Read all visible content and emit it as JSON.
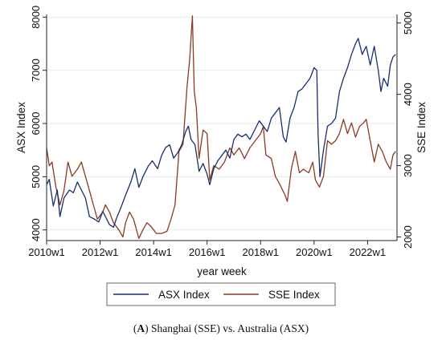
{
  "caption": {
    "letter": "A",
    "text": ") Shanghai (SSE) vs. Australia (ASX)"
  },
  "chart_data": {
    "type": "line",
    "xlabel": "year week",
    "ylabel_left": "ASX Index",
    "ylabel_right": "SSE Index",
    "x_ticks": [
      "2010w1",
      "2012w1",
      "2014w1",
      "2016w1",
      "2018w1",
      "2020w1",
      "2022w1"
    ],
    "xlim": [
      2010.0,
      2023.1
    ],
    "ylim_left": [
      3800,
      8050
    ],
    "yticks_left": [
      4000,
      5000,
      6000,
      7000,
      8000
    ],
    "ylim_right": [
      1950,
      5120
    ],
    "yticks_right": [
      2000,
      3000,
      4000,
      5000
    ],
    "grid": true,
    "legend_position": "bottom",
    "colors": {
      "ASX": "#1a2e6e",
      "SSE": "#8c3b24"
    },
    "series": [
      {
        "name": "ASX Index",
        "axis": "left",
        "points": [
          [
            2010.0,
            4850
          ],
          [
            2010.1,
            4950
          ],
          [
            2010.25,
            4450
          ],
          [
            2010.4,
            4750
          ],
          [
            2010.5,
            4250
          ],
          [
            2010.65,
            4600
          ],
          [
            2010.85,
            4750
          ],
          [
            2011.0,
            4700
          ],
          [
            2011.15,
            4900
          ],
          [
            2011.3,
            4750
          ],
          [
            2011.45,
            4600
          ],
          [
            2011.6,
            4250
          ],
          [
            2011.8,
            4200
          ],
          [
            2011.95,
            4150
          ],
          [
            2012.1,
            4350
          ],
          [
            2012.2,
            4250
          ],
          [
            2012.35,
            4100
          ],
          [
            2012.5,
            4050
          ],
          [
            2012.6,
            4200
          ],
          [
            2012.8,
            4450
          ],
          [
            2012.95,
            4650
          ],
          [
            2013.15,
            4900
          ],
          [
            2013.3,
            5150
          ],
          [
            2013.45,
            4800
          ],
          [
            2013.6,
            5000
          ],
          [
            2013.8,
            5200
          ],
          [
            2013.95,
            5300
          ],
          [
            2014.15,
            5150
          ],
          [
            2014.3,
            5400
          ],
          [
            2014.45,
            5550
          ],
          [
            2014.6,
            5600
          ],
          [
            2014.75,
            5350
          ],
          [
            2014.9,
            5450
          ],
          [
            2015.05,
            5600
          ],
          [
            2015.2,
            5850
          ],
          [
            2015.3,
            5950
          ],
          [
            2015.4,
            5700
          ],
          [
            2015.55,
            5600
          ],
          [
            2015.7,
            5100
          ],
          [
            2015.85,
            5250
          ],
          [
            2016.0,
            5050
          ],
          [
            2016.1,
            4850
          ],
          [
            2016.25,
            5150
          ],
          [
            2016.4,
            5300
          ],
          [
            2016.55,
            5400
          ],
          [
            2016.7,
            5500
          ],
          [
            2016.85,
            5350
          ],
          [
            2017.0,
            5700
          ],
          [
            2017.15,
            5800
          ],
          [
            2017.3,
            5750
          ],
          [
            2017.45,
            5800
          ],
          [
            2017.6,
            5700
          ],
          [
            2017.75,
            5850
          ],
          [
            2017.95,
            6050
          ],
          [
            2018.1,
            5950
          ],
          [
            2018.25,
            5850
          ],
          [
            2018.4,
            6100
          ],
          [
            2018.55,
            6200
          ],
          [
            2018.7,
            6300
          ],
          [
            2018.85,
            5750
          ],
          [
            2018.95,
            5650
          ],
          [
            2019.1,
            6100
          ],
          [
            2019.25,
            6300
          ],
          [
            2019.4,
            6600
          ],
          [
            2019.55,
            6650
          ],
          [
            2019.7,
            6750
          ],
          [
            2019.85,
            6850
          ],
          [
            2020.0,
            7050
          ],
          [
            2020.1,
            7000
          ],
          [
            2020.15,
            5800
          ],
          [
            2020.22,
            5000
          ],
          [
            2020.35,
            5500
          ],
          [
            2020.5,
            5950
          ],
          [
            2020.65,
            6000
          ],
          [
            2020.8,
            6100
          ],
          [
            2020.95,
            6600
          ],
          [
            2021.1,
            6850
          ],
          [
            2021.25,
            7050
          ],
          [
            2021.4,
            7300
          ],
          [
            2021.55,
            7500
          ],
          [
            2021.65,
            7600
          ],
          [
            2021.8,
            7300
          ],
          [
            2021.95,
            7450
          ],
          [
            2022.1,
            7100
          ],
          [
            2022.25,
            7450
          ],
          [
            2022.4,
            7000
          ],
          [
            2022.5,
            6600
          ],
          [
            2022.6,
            6850
          ],
          [
            2022.75,
            6700
          ],
          [
            2022.85,
            7100
          ],
          [
            2022.95,
            7250
          ],
          [
            2023.05,
            7300
          ]
        ]
      },
      {
        "name": "SSE Index",
        "axis": "right",
        "points": [
          [
            2010.0,
            3250
          ],
          [
            2010.1,
            3000
          ],
          [
            2010.2,
            3050
          ],
          [
            2010.35,
            2700
          ],
          [
            2010.5,
            2450
          ],
          [
            2010.65,
            2650
          ],
          [
            2010.8,
            3050
          ],
          [
            2010.95,
            2850
          ],
          [
            2011.15,
            2950
          ],
          [
            2011.3,
            3050
          ],
          [
            2011.45,
            2850
          ],
          [
            2011.6,
            2650
          ],
          [
            2011.75,
            2450
          ],
          [
            2011.9,
            2250
          ],
          [
            2012.1,
            2350
          ],
          [
            2012.2,
            2450
          ],
          [
            2012.35,
            2350
          ],
          [
            2012.5,
            2200
          ],
          [
            2012.7,
            2100
          ],
          [
            2012.85,
            2000
          ],
          [
            2012.95,
            2200
          ],
          [
            2013.1,
            2350
          ],
          [
            2013.25,
            2250
          ],
          [
            2013.45,
            1980
          ],
          [
            2013.6,
            2100
          ],
          [
            2013.75,
            2200
          ],
          [
            2013.9,
            2150
          ],
          [
            2014.1,
            2050
          ],
          [
            2014.3,
            2050
          ],
          [
            2014.5,
            2080
          ],
          [
            2014.65,
            2250
          ],
          [
            2014.8,
            2450
          ],
          [
            2014.95,
            3200
          ],
          [
            2015.1,
            3300
          ],
          [
            2015.25,
            4100
          ],
          [
            2015.35,
            4500
          ],
          [
            2015.45,
            5100
          ],
          [
            2015.52,
            4050
          ],
          [
            2015.6,
            3800
          ],
          [
            2015.7,
            3100
          ],
          [
            2015.85,
            3500
          ],
          [
            2016.0,
            3450
          ],
          [
            2016.1,
            2800
          ],
          [
            2016.25,
            3000
          ],
          [
            2016.45,
            2950
          ],
          [
            2016.65,
            3050
          ],
          [
            2016.85,
            3250
          ],
          [
            2017.0,
            3150
          ],
          [
            2017.2,
            3250
          ],
          [
            2017.4,
            3100
          ],
          [
            2017.6,
            3250
          ],
          [
            2017.8,
            3350
          ],
          [
            2018.0,
            3450
          ],
          [
            2018.1,
            3550
          ],
          [
            2018.2,
            3150
          ],
          [
            2018.4,
            3100
          ],
          [
            2018.55,
            2850
          ],
          [
            2018.7,
            2750
          ],
          [
            2018.9,
            2600
          ],
          [
            2019.0,
            2500
          ],
          [
            2019.15,
            2950
          ],
          [
            2019.3,
            3200
          ],
          [
            2019.45,
            2900
          ],
          [
            2019.6,
            2950
          ],
          [
            2019.8,
            2900
          ],
          [
            2019.95,
            3050
          ],
          [
            2020.05,
            2800
          ],
          [
            2020.2,
            2700
          ],
          [
            2020.35,
            2850
          ],
          [
            2020.5,
            3350
          ],
          [
            2020.65,
            3300
          ],
          [
            2020.8,
            3350
          ],
          [
            2020.95,
            3450
          ],
          [
            2021.1,
            3650
          ],
          [
            2021.25,
            3450
          ],
          [
            2021.4,
            3600
          ],
          [
            2021.55,
            3400
          ],
          [
            2021.7,
            3550
          ],
          [
            2021.85,
            3600
          ],
          [
            2021.95,
            3650
          ],
          [
            2022.1,
            3350
          ],
          [
            2022.25,
            3050
          ],
          [
            2022.4,
            3300
          ],
          [
            2022.55,
            3200
          ],
          [
            2022.7,
            3050
          ],
          [
            2022.85,
            2950
          ],
          [
            2022.95,
            3150
          ],
          [
            2023.05,
            3200
          ]
        ]
      }
    ]
  }
}
